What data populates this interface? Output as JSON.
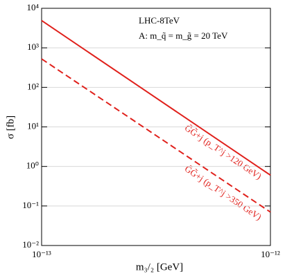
{
  "chart_data": {
    "type": "line",
    "xlabel": "m₃/₂ [GeV]",
    "ylabel": "σ [fb]",
    "annotations": [
      "LHC-8TeV",
      "A: m_q̃ = m_g̃ = 20 TeV",
      "G̃G̃+j (p_T^j >120 GeV)",
      "G̃G̃+j (p_T^j >350 GeV)"
    ],
    "x": [
      1e-13,
      1e-12
    ],
    "series": [
      {
        "color": "#e0201b",
        "linestyle": "solid",
        "values": [
          4900,
          0.6
        ]
      },
      {
        "color": "#e0201b",
        "linestyle": "dashed",
        "values": [
          525,
          0.07
        ]
      }
    ],
    "xscale": "log",
    "yscale": "log",
    "xlim": [
      1e-13,
      1e-12
    ],
    "ylim": [
      0.01,
      10000
    ],
    "xticks": [
      {
        "value": 1e-13,
        "label": "10⁻¹³"
      },
      {
        "value": 1e-12,
        "label": "10⁻¹²"
      }
    ],
    "yticks": [
      {
        "value": 0.01,
        "label": "10⁻²"
      },
      {
        "value": 0.1,
        "label": "10⁻¹"
      },
      {
        "value": 1,
        "label": "10⁰"
      },
      {
        "value": 10,
        "label": "10¹"
      },
      {
        "value": 100,
        "label": "10²"
      },
      {
        "value": 1000,
        "label": "10³"
      },
      {
        "value": 10000,
        "label": "10⁴"
      }
    ],
    "grid": true
  }
}
